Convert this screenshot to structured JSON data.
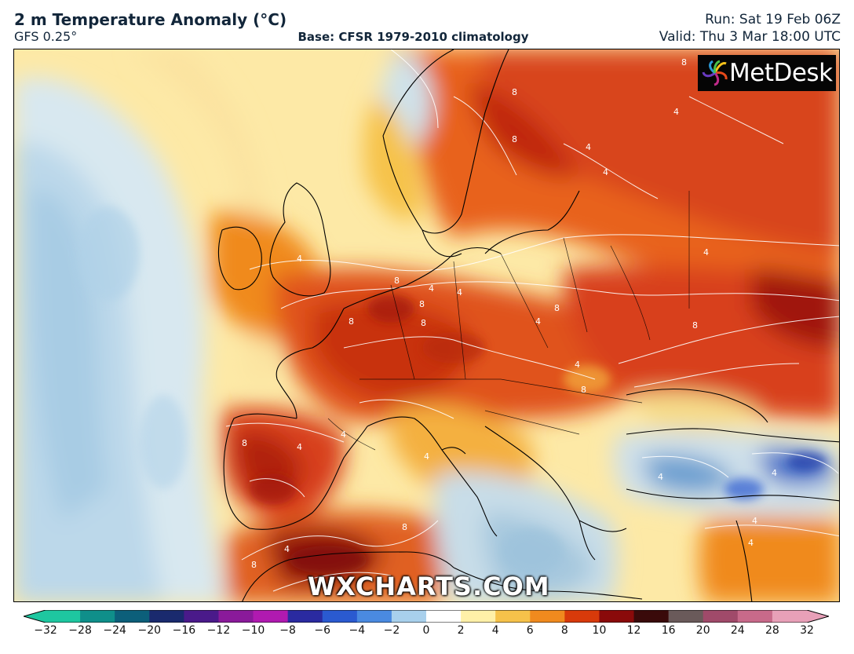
{
  "header": {
    "title": "2 m Temperature Anomaly (°C)",
    "model": "GFS 0.25°",
    "base": "Base: CFSR 1979-2010 climatology",
    "run": "Run: Sat 19 Feb 06Z",
    "valid": "Valid: Thu 3 Mar 18:00 UTC"
  },
  "logo": {
    "text": "MetDesk"
  },
  "watermark": "WXCHARTS.COM",
  "legend": {
    "ticks": [
      "−32",
      "−28",
      "−24",
      "−20",
      "−16",
      "−12",
      "−10",
      "−8",
      "−6",
      "−4",
      "−2",
      "0",
      "2",
      "4",
      "6",
      "8",
      "10",
      "12",
      "16",
      "20",
      "24",
      "28",
      "32"
    ],
    "colors": [
      "#1ec7a0",
      "#0f8f8a",
      "#0c5f7a",
      "#1a2a6e",
      "#4a1a8a",
      "#8a1a9a",
      "#b01ab0",
      "#2a2aa0",
      "#2a5ad0",
      "#4a8ae0",
      "#a8d0ec",
      "#ffffff",
      "#fff0a8",
      "#f6c24a",
      "#f08a1e",
      "#d83a0a",
      "#8a0a0a",
      "#3a0a0a",
      "#6a5a5a",
      "#a04a6a",
      "#c86a8a",
      "#e8a0b8"
    ]
  },
  "contour_labels": [
    "8",
    "4",
    "4",
    "8",
    "8",
    "4",
    "4",
    "8",
    "8",
    "4",
    "4",
    "8",
    "8",
    "4",
    "4",
    "8",
    "8",
    "4",
    "8",
    "4",
    "4",
    "8",
    "4",
    "4",
    "4",
    "8",
    "4",
    "8",
    "4",
    "4"
  ]
}
